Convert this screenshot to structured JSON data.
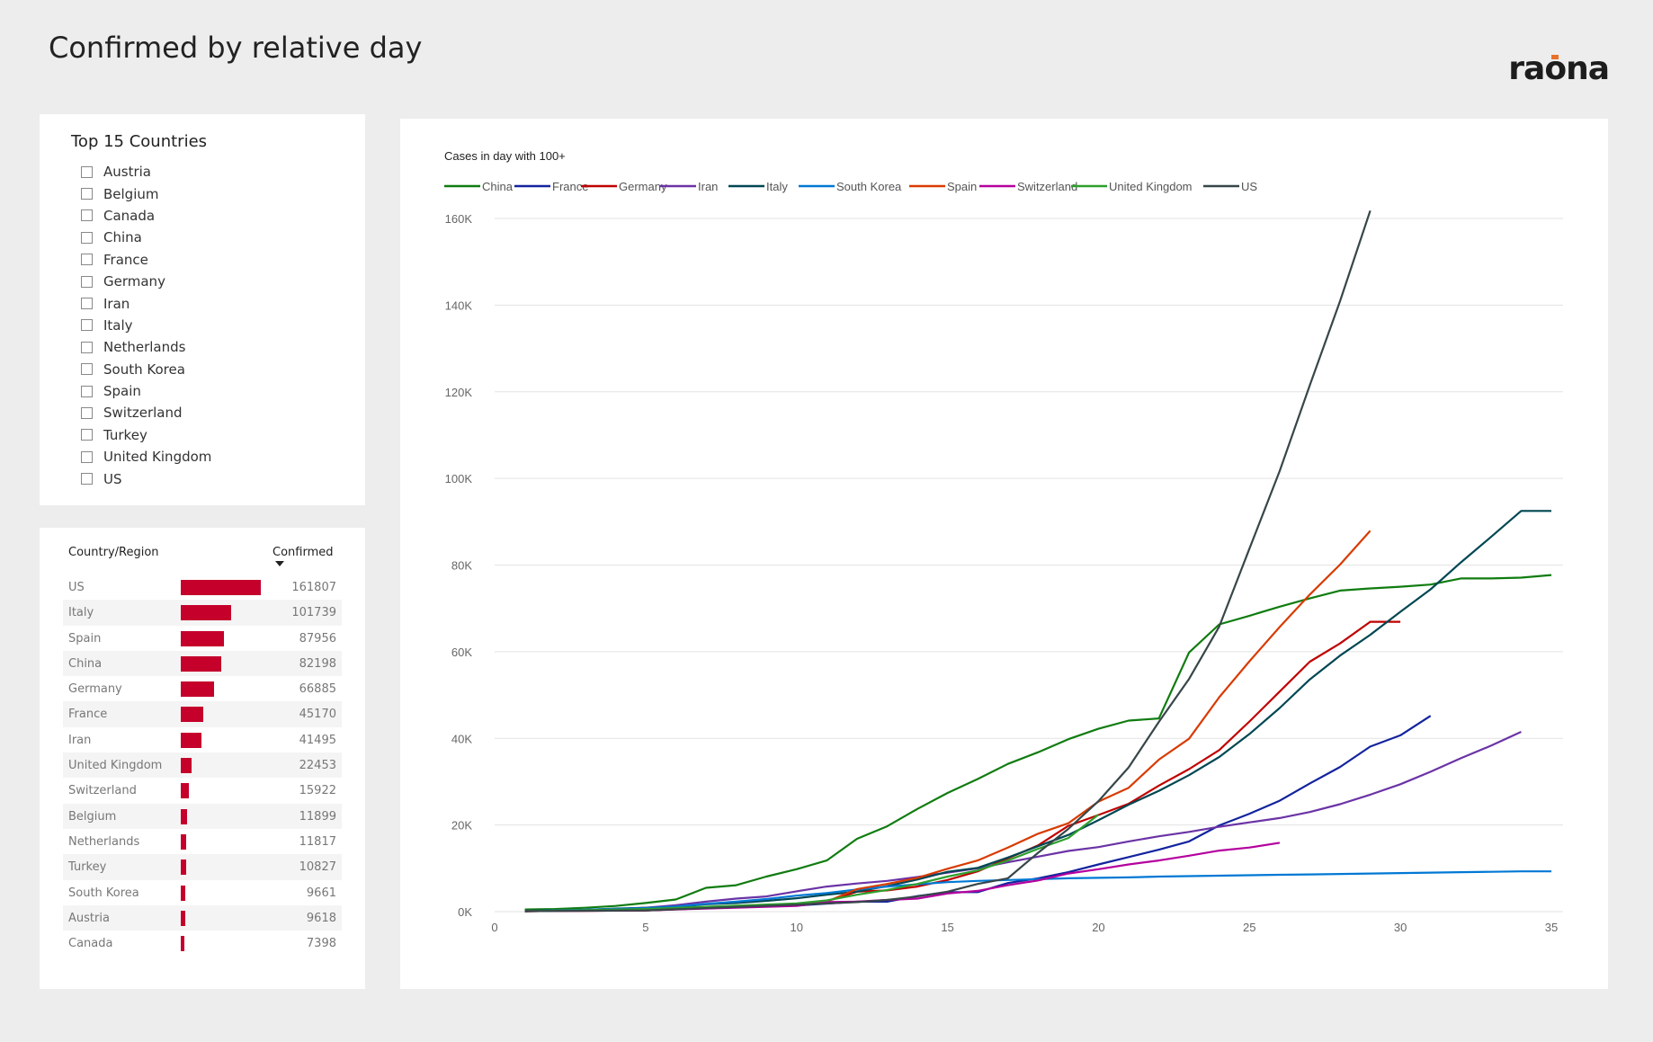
{
  "header": {
    "title": "Confirmed by relative day",
    "logo_text": "raona"
  },
  "slicer": {
    "title": "Top 15 Countries",
    "items": [
      "Austria",
      "Belgium",
      "Canada",
      "China",
      "France",
      "Germany",
      "Iran",
      "Italy",
      "Netherlands",
      "South Korea",
      "Spain",
      "Switzerland",
      "Turkey",
      "United Kingdom",
      "US"
    ]
  },
  "table": {
    "col_country": "Country/Region",
    "col_confirmed": "Confirmed",
    "bar_color": "#c4002b",
    "rows": [
      {
        "name": "US",
        "value": 161807
      },
      {
        "name": "Italy",
        "value": 101739
      },
      {
        "name": "Spain",
        "value": 87956
      },
      {
        "name": "China",
        "value": 82198
      },
      {
        "name": "Germany",
        "value": 66885
      },
      {
        "name": "France",
        "value": 45170
      },
      {
        "name": "Iran",
        "value": 41495
      },
      {
        "name": "United Kingdom",
        "value": 22453
      },
      {
        "name": "Switzerland",
        "value": 15922
      },
      {
        "name": "Belgium",
        "value": 11899
      },
      {
        "name": "Netherlands",
        "value": 11817
      },
      {
        "name": "Turkey",
        "value": 10827
      },
      {
        "name": "South Korea",
        "value": 9661
      },
      {
        "name": "Austria",
        "value": 9618
      },
      {
        "name": "Canada",
        "value": 7398
      }
    ]
  },
  "chart_data": {
    "type": "line",
    "title": "Cases in day with 100+",
    "legend_position": "top-left",
    "xlim": [
      0,
      35
    ],
    "ylim": [
      0,
      160000
    ],
    "x_ticks": [
      "0",
      "5",
      "10",
      "15",
      "20",
      "25",
      "30",
      "35"
    ],
    "y_ticks": [
      "0K",
      "20K",
      "40K",
      "60K",
      "80K",
      "100K",
      "120K",
      "140K",
      "160K"
    ],
    "grid": "horizontal",
    "series": [
      {
        "name": "China",
        "color": "#107c10",
        "x": [
          1,
          2,
          3,
          4,
          5,
          6,
          7,
          8,
          9,
          10,
          11,
          12,
          13,
          14,
          15,
          16,
          17,
          18,
          19,
          20,
          21,
          22,
          23,
          24,
          25,
          26,
          27,
          28,
          29,
          30,
          31,
          32,
          33,
          34,
          35
        ],
        "y": [
          500,
          600,
          900,
          1300,
          2000,
          2800,
          5500,
          6100,
          8100,
          9800,
          11800,
          16800,
          19700,
          23700,
          27400,
          30600,
          34100,
          36800,
          39800,
          42200,
          44100,
          44600,
          59800,
          66300,
          68300,
          70400,
          72300,
          74100,
          74600,
          75000,
          75500,
          76900,
          76900,
          77100,
          77700
        ]
      },
      {
        "name": "France",
        "color": "#12239e",
        "x": [
          1,
          5,
          10,
          12,
          13,
          14,
          15,
          16,
          17,
          18,
          19,
          20,
          21,
          22,
          23,
          24,
          25,
          26,
          27,
          28,
          29,
          30,
          31
        ],
        "y": [
          100,
          400,
          1400,
          2300,
          2300,
          3600,
          4500,
          4500,
          6600,
          7700,
          9100,
          10900,
          12600,
          14300,
          16200,
          19900,
          22600,
          25600,
          29600,
          33400,
          38100,
          40700,
          45200
        ]
      },
      {
        "name": "Germany",
        "color": "#c00000",
        "x": [
          1,
          5,
          10,
          11,
          12,
          13,
          14,
          15,
          16,
          17,
          18,
          19,
          20,
          21,
          22,
          23,
          24,
          25,
          26,
          27,
          28,
          29,
          30
        ],
        "y": [
          100,
          300,
          1500,
          2400,
          4600,
          4900,
          5800,
          7300,
          9300,
          12300,
          15300,
          19800,
          22300,
          24900,
          29100,
          32900,
          37300,
          43900,
          50800,
          57700,
          61900,
          66900,
          66900
        ]
      },
      {
        "name": "Iran",
        "color": "#6b33a6",
        "x": [
          1,
          2,
          3,
          4,
          5,
          6,
          7,
          8,
          9,
          10,
          11,
          12,
          13,
          14,
          15,
          16,
          17,
          18,
          19,
          20,
          21,
          22,
          23,
          24,
          25,
          26,
          27,
          28,
          29,
          30,
          31,
          32,
          33,
          34
        ],
        "y": [
          100,
          300,
          400,
          600,
          900,
          1500,
          2300,
          3000,
          3500,
          4700,
          5800,
          6500,
          7100,
          8000,
          9000,
          10000,
          11400,
          12700,
          14000,
          14900,
          16200,
          17400,
          18400,
          19600,
          20600,
          21600,
          23000,
          24800,
          27000,
          29400,
          32300,
          35400,
          38300,
          41500
        ]
      },
      {
        "name": "Italy",
        "color": "#004753",
        "x": [
          1,
          2,
          3,
          4,
          5,
          6,
          7,
          8,
          9,
          10,
          11,
          12,
          13,
          14,
          15,
          16,
          17,
          18,
          19,
          20,
          21,
          22,
          23,
          24,
          25,
          26,
          27,
          28,
          29,
          30,
          31,
          32,
          33,
          34,
          35
        ],
        "y": [
          200,
          300,
          400,
          700,
          900,
          1100,
          1700,
          2000,
          2500,
          3100,
          3900,
          4600,
          5900,
          7400,
          9200,
          10100,
          12500,
          15100,
          17700,
          21100,
          24700,
          27900,
          31500,
          35700,
          41000,
          47000,
          53600,
          59100,
          63900,
          69200,
          74400,
          80600,
          86500,
          92500,
          92500
        ]
      },
      {
        "name": "South Korea",
        "color": "#0078d4",
        "x": [
          1,
          5,
          6,
          7,
          8,
          9,
          10,
          11,
          12,
          13,
          14,
          15,
          16,
          17,
          18,
          19,
          20,
          21,
          22,
          23,
          24,
          25,
          26,
          27,
          28,
          29,
          30,
          31,
          32,
          33,
          34,
          35
        ],
        "y": [
          100,
          800,
          1200,
          1800,
          2300,
          2900,
          3700,
          4300,
          5100,
          5800,
          6300,
          6800,
          7100,
          7300,
          7500,
          7700,
          7800,
          7900,
          8100,
          8200,
          8300,
          8400,
          8500,
          8600,
          8700,
          8800,
          8900,
          9000,
          9100,
          9200,
          9300,
          9300
        ]
      },
      {
        "name": "Spain",
        "color": "#d83b01",
        "x": [
          1,
          5,
          10,
          11,
          12,
          13,
          14,
          15,
          16,
          17,
          18,
          19,
          20,
          21,
          22,
          23,
          24,
          25,
          26,
          27,
          28,
          29
        ],
        "y": [
          100,
          300,
          1700,
          2300,
          5200,
          6400,
          7800,
          9900,
          11800,
          14800,
          18000,
          20400,
          25400,
          28600,
          35100,
          39900,
          49500,
          57800,
          65700,
          73200,
          80100,
          87900
        ]
      },
      {
        "name": "Switzerland",
        "color": "#b4009e",
        "x": [
          1,
          5,
          10,
          11,
          12,
          13,
          14,
          15,
          16,
          17,
          18,
          19,
          20,
          21,
          22,
          23,
          24,
          25,
          26
        ],
        "y": [
          100,
          300,
          1300,
          2200,
          2300,
          2700,
          3000,
          4200,
          4800,
          6100,
          7200,
          8800,
          9800,
          10900,
          11800,
          12900,
          14100,
          14800,
          15900
        ]
      },
      {
        "name": "United Kingdom",
        "color": "#2d9f2d",
        "x": [
          1,
          5,
          10,
          11,
          12,
          13,
          14,
          15,
          16,
          17,
          18,
          19,
          20
        ],
        "y": [
          100,
          600,
          1900,
          2600,
          3900,
          5000,
          6400,
          8100,
          9500,
          11800,
          14500,
          17000,
          22400
        ]
      },
      {
        "name": "US",
        "color": "#374649",
        "x": [
          1,
          5,
          10,
          12,
          13,
          14,
          15,
          16,
          17,
          18,
          19,
          20,
          21,
          22,
          23,
          24,
          25,
          26,
          27,
          28,
          29
        ],
        "y": [
          100,
          300,
          1600,
          2200,
          2700,
          3500,
          4600,
          6400,
          7700,
          13600,
          19100,
          25500,
          33300,
          43800,
          53700,
          65800,
          83800,
          101700,
          121500,
          140900,
          161800
        ]
      }
    ]
  }
}
